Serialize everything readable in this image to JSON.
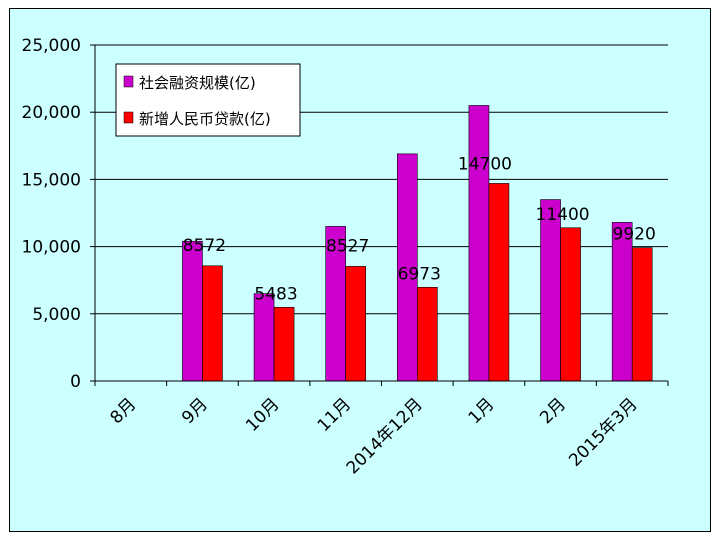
{
  "chart_data": {
    "type": "bar",
    "categories": [
      "8月",
      "9月",
      "10月",
      "11月",
      "2014年12月",
      "1月",
      "2月",
      "2015年3月"
    ],
    "series": [
      {
        "name": "社会融资规模(亿)",
        "color": "#cc00cc",
        "values": [
          null,
          10400,
          6500,
          11500,
          16900,
          20500,
          13500,
          11800
        ]
      },
      {
        "name": "新增人民币贷款(亿)",
        "color": "#ff0000",
        "values": [
          null,
          8572,
          5483,
          8527,
          6973,
          14700,
          11400,
          9920
        ]
      }
    ],
    "data_labels": [
      "",
      "8572",
      "5483",
      "8527",
      "6973",
      "14700",
      "11400",
      "9920"
    ],
    "ylim": [
      0,
      25000
    ],
    "yticks": [
      "0",
      "5,000",
      "10,000",
      "15,000",
      "20,000",
      "25,000"
    ],
    "grid": true,
    "legend": "top-left",
    "background": "#ccffff"
  }
}
